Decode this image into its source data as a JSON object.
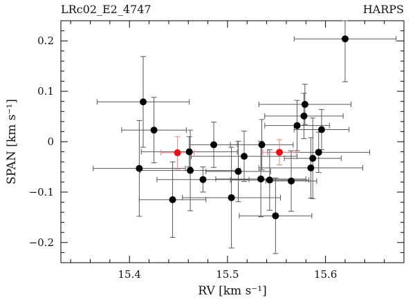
{
  "chart_data": {
    "type": "scatter",
    "title_left": "LRc02_E2_4747",
    "title_right": "HARPS",
    "xlabel": "RV  [km s⁻¹]",
    "ylabel": "SPAN  [km s⁻¹]",
    "xlim": [
      15.33,
      15.68
    ],
    "ylim": [
      -0.24,
      0.24
    ],
    "x_ticks": [
      15.4,
      15.5,
      15.6
    ],
    "y_ticks": [
      -0.2,
      -0.1,
      0,
      0.1,
      0.2
    ],
    "x_tick_labels": [
      "15.4",
      "15.5",
      "15.6"
    ],
    "y_tick_labels": [
      "−0.2",
      "−0.1",
      "0",
      "0.1",
      "0.2"
    ],
    "grid": false,
    "colors": {
      "main": "#000000",
      "highlight": "#e8101a",
      "errorbar": "#555555",
      "highlight_errorbar": "#f08080"
    },
    "series": [
      {
        "points": [
          {
            "x": 15.62,
            "y": 0.204,
            "xerr": 0.052,
            "yerr": 0.085
          },
          {
            "x": 15.414,
            "y": 0.079,
            "xerr": 0.047,
            "yerr": 0.09
          },
          {
            "x": 15.425,
            "y": 0.023,
            "xerr": 0.033,
            "yerr": 0.065
          },
          {
            "x": 15.579,
            "y": 0.074,
            "xerr": 0.047,
            "yerr": 0.04
          },
          {
            "x": 15.578,
            "y": 0.051,
            "xerr": 0.04,
            "yerr": 0.045
          },
          {
            "x": 15.571,
            "y": 0.032,
            "xerr": 0.033,
            "yerr": 0.05
          },
          {
            "x": 15.596,
            "y": 0.024,
            "xerr": 0.028,
            "yerr": 0.04
          },
          {
            "x": 15.486,
            "y": -0.006,
            "xerr": 0.024,
            "yerr": 0.045
          },
          {
            "x": 15.535,
            "y": -0.006,
            "xerr": 0.032,
            "yerr": 0.05
          },
          {
            "x": 15.593,
            "y": -0.021,
            "xerr": 0.052,
            "yerr": 0.04
          },
          {
            "x": 15.517,
            "y": -0.029,
            "xerr": 0.054,
            "yerr": 0.05
          },
          {
            "x": 15.587,
            "y": -0.033,
            "xerr": 0.029,
            "yerr": 0.08
          },
          {
            "x": 15.41,
            "y": -0.053,
            "xerr": 0.047,
            "yerr": 0.095
          },
          {
            "x": 15.585,
            "y": -0.052,
            "xerr": 0.053,
            "yerr": 0.06
          },
          {
            "x": 15.461,
            "y": -0.02,
            "xerr": 0.049,
            "yerr": 0.03
          },
          {
            "x": 15.462,
            "y": -0.057,
            "xerr": 0.051,
            "yerr": 0.08
          },
          {
            "x": 15.511,
            "y": -0.059,
            "xerr": 0.033,
            "yerr": 0.06
          },
          {
            "x": 15.475,
            "y": -0.075,
            "xerr": 0.047,
            "yerr": 0.025
          },
          {
            "x": 15.534,
            "y": -0.074,
            "xerr": 0.046,
            "yerr": 0.075
          },
          {
            "x": 15.543,
            "y": -0.076,
            "xerr": 0.04,
            "yerr": 0.06
          },
          {
            "x": 15.565,
            "y": -0.078,
            "xerr": 0.026,
            "yerr": 0.06
          },
          {
            "x": 15.444,
            "y": -0.115,
            "xerr": 0.034,
            "yerr": 0.075
          },
          {
            "x": 15.504,
            "y": -0.111,
            "xerr": 0.05,
            "yerr": 0.1
          },
          {
            "x": 15.549,
            "y": -0.147,
            "xerr": 0.037,
            "yerr": 0.075
          }
        ]
      },
      {
        "highlight": true,
        "points": [
          {
            "x": 15.449,
            "y": -0.022,
            "xerr": 0.017,
            "yerr": 0.032
          },
          {
            "x": 15.553,
            "y": -0.021,
            "xerr": 0.017,
            "yerr": 0.025
          }
        ]
      }
    ]
  }
}
